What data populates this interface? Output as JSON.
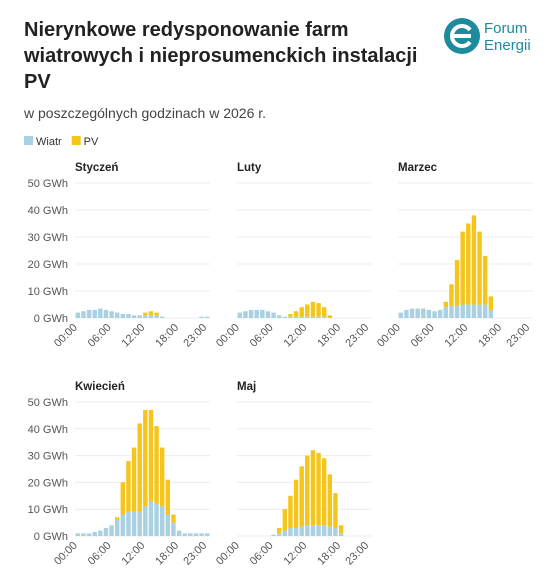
{
  "title": [
    "Nierynkowe redysponowanie farm",
    "wiatrowych i nieprosumenckich instalacji",
    "PV"
  ],
  "subtitle": "w poszczególnych godzinach w 2026 r.",
  "logo": [
    "Forum",
    "Energii"
  ],
  "chart_data": [
    {
      "type": "bar",
      "stacked": true,
      "title": "Styczeń",
      "categories": [
        "00:00",
        null,
        null,
        null,
        null,
        null,
        "06:00",
        null,
        null,
        null,
        null,
        null,
        "12:00",
        null,
        null,
        null,
        null,
        null,
        "18:00",
        null,
        null,
        null,
        null,
        "23:00"
      ],
      "series": [
        {
          "name": "Wiatr",
          "color": "#a9d1e2",
          "values": [
            2,
            2.5,
            3,
            3,
            3.5,
            3,
            2.5,
            2,
            1.5,
            1.5,
            1,
            1,
            1,
            1,
            1,
            0.5,
            0,
            0,
            0,
            0,
            0,
            0,
            0.5,
            0.5
          ]
        },
        {
          "name": "PV",
          "color": "#f6c51b",
          "values": [
            0,
            0,
            0,
            0,
            0,
            0,
            0,
            0,
            0,
            0,
            0,
            0,
            1,
            1.5,
            1,
            0,
            0,
            0,
            0,
            0,
            0,
            0,
            0,
            0
          ]
        }
      ],
      "ylim": [
        0,
        50
      ],
      "yticks": [
        {
          "value": 0,
          "label": "0 GWh"
        },
        {
          "value": 10,
          "label": "10 GWh"
        },
        {
          "value": 20,
          "label": "20 GWh"
        },
        {
          "value": 30,
          "label": "30 GWh"
        },
        {
          "value": 40,
          "label": "40 GWh"
        },
        {
          "value": 50,
          "label": "50 GWh"
        }
      ],
      "grid": true
    },
    {
      "type": "bar",
      "stacked": true,
      "title": "Luty",
      "categories": [
        "00:00",
        null,
        null,
        null,
        null,
        null,
        "06:00",
        null,
        null,
        null,
        null,
        null,
        "12:00",
        null,
        null,
        null,
        null,
        null,
        "18:00",
        null,
        null,
        null,
        null,
        "23:00"
      ],
      "series": [
        {
          "color": "#a9d1e2",
          "values": [
            2,
            2.5,
            3,
            3,
            3,
            2.5,
            2,
            1,
            0.5,
            0.5,
            0.5,
            0.5,
            0.5,
            0.5,
            0.5,
            0.5,
            0,
            0,
            0,
            0,
            0,
            0,
            0,
            0
          ]
        },
        {
          "color": "#f6c51b",
          "values": [
            0,
            0,
            0,
            0,
            0,
            0,
            0,
            0,
            0,
            1,
            2,
            3.5,
            4.5,
            5.5,
            5,
            3.5,
            1,
            0,
            0,
            0,
            0,
            0,
            0,
            0
          ]
        }
      ],
      "ylim": [
        0,
        50
      ],
      "yticks": [
        0,
        10,
        20,
        30,
        40,
        50
      ],
      "grid": true
    },
    {
      "type": "bar",
      "stacked": true,
      "title": "Marzec",
      "categories": [
        "00:00",
        null,
        null,
        null,
        null,
        null,
        "06:00",
        null,
        null,
        null,
        null,
        null,
        "12:00",
        null,
        null,
        null,
        null,
        null,
        "18:00",
        null,
        null,
        null,
        null,
        "23:00"
      ],
      "series": [
        {
          "color": "#a9d1e2",
          "values": [
            2,
            3,
            3.5,
            3.5,
            3.5,
            3,
            2.5,
            3,
            4,
            4.5,
            4.5,
            5,
            5,
            5,
            5,
            5,
            3,
            0,
            0,
            0,
            0,
            0,
            0,
            0
          ]
        },
        {
          "color": "#f6c51b",
          "values": [
            0,
            0,
            0,
            0,
            0,
            0,
            0,
            0,
            2,
            8,
            17,
            27,
            30,
            33,
            27,
            18,
            5,
            0,
            0,
            0,
            0,
            0,
            0,
            0
          ]
        }
      ],
      "ylim": [
        0,
        50
      ],
      "yticks": [
        0,
        10,
        20,
        30,
        40,
        50
      ],
      "grid": true
    },
    {
      "type": "bar",
      "stacked": true,
      "title": "Kwiecień",
      "categories": [
        "00:00",
        null,
        null,
        null,
        null,
        null,
        "06:00",
        null,
        null,
        null,
        null,
        null,
        "12:00",
        null,
        null,
        null,
        null,
        null,
        "18:00",
        null,
        null,
        null,
        null,
        "23:00"
      ],
      "series": [
        {
          "color": "#a9d1e2",
          "values": [
            1,
            1,
            1,
            1.5,
            2,
            3,
            4,
            6,
            8,
            9,
            9,
            9,
            11,
            13,
            12,
            11,
            8,
            5,
            2,
            1,
            1,
            1,
            1,
            1
          ]
        },
        {
          "color": "#f6c51b",
          "values": [
            0,
            0,
            0,
            0,
            0,
            0,
            0,
            1,
            12,
            19,
            24,
            33,
            36,
            34,
            29,
            22,
            13,
            3,
            0,
            0,
            0,
            0,
            0,
            0
          ]
        }
      ],
      "ylim": [
        0,
        50
      ],
      "yticks": [
        {
          "value": 0,
          "label": "0 GWh"
        },
        {
          "value": 10,
          "label": "10 GWh"
        },
        {
          "value": 20,
          "label": "20 GWh"
        },
        {
          "value": 30,
          "label": "30 GWh"
        },
        {
          "value": 40,
          "label": "40 GWh"
        },
        {
          "value": 50,
          "label": "50 GWh"
        }
      ],
      "grid": true
    },
    {
      "type": "bar",
      "stacked": true,
      "title": "Maj",
      "categories": [
        "00:00",
        null,
        null,
        null,
        null,
        null,
        "06:00",
        null,
        null,
        null,
        null,
        null,
        "12:00",
        null,
        null,
        null,
        null,
        null,
        "18:00",
        null,
        null,
        null,
        null,
        "23:00"
      ],
      "series": [
        {
          "color": "#a9d1e2",
          "values": [
            0,
            0,
            0,
            0,
            0,
            0,
            0.5,
            1,
            2,
            3,
            3,
            3.5,
            4,
            4,
            4,
            4,
            3.5,
            3,
            1,
            0,
            0,
            0,
            0,
            0
          ]
        },
        {
          "color": "#f6c51b",
          "values": [
            0,
            0,
            0,
            0,
            0,
            0,
            0,
            2,
            8,
            12,
            18,
            22.5,
            26,
            28,
            27,
            25,
            19.5,
            13,
            3,
            0,
            0,
            0,
            0,
            0
          ]
        }
      ],
      "ylim": [
        0,
        50
      ],
      "yticks": [
        0,
        10,
        20,
        30,
        40,
        50
      ],
      "grid": true
    }
  ]
}
